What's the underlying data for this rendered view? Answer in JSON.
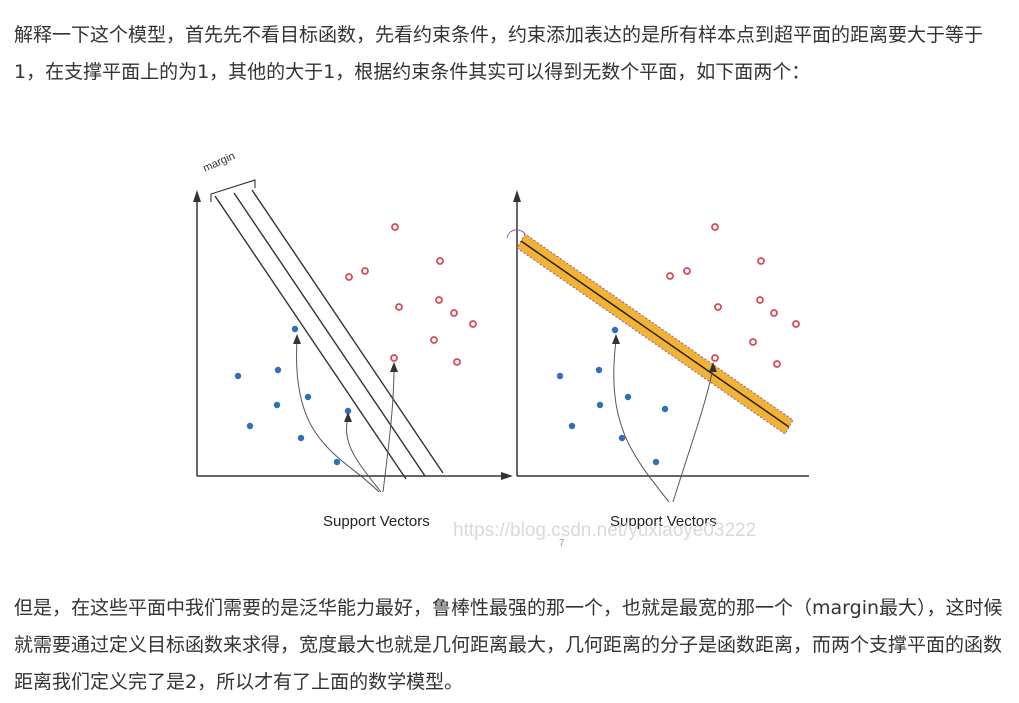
{
  "article": {
    "paragraph_1": "解释一下这个模型，首先先不看目标函数，先看约束条件，约束添加表达的是所有样本点到超平面的距离要大于等于1，在支撑平面上的为1，其他的大于1，根据约束条件其实可以得到无数个平面，如下面两个：",
    "paragraph_2": "但是，在这些平面中我们需要的是泛华能力最好，鲁棒性最强的那一个，也就是最宽的那一个（margin最大），这时候就需要通过定义目标函数来求得，宽度最大也就是几何距离最大，几何距离的分子是函数距离，而两个支撑平面的函数距离我们定义完了是2，所以才有了上面的数学模型。"
  },
  "figure": {
    "left_panel": {
      "margin_label": "margin",
      "caption": "Support Vectors"
    },
    "right_panel": {
      "caption": "Support Vectors"
    },
    "watermark": "https://blog.csdn.net/yuxiaoye03222",
    "page_number": "7",
    "colors": {
      "negative_point": "#2e6fb5",
      "positive_point": "#d64a5c",
      "margin_band": "#f2b233",
      "axis": "#333333"
    }
  }
}
